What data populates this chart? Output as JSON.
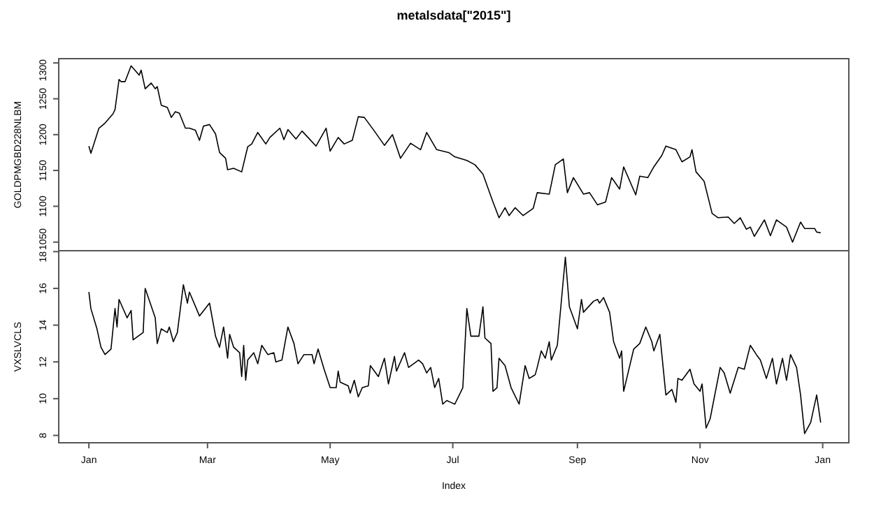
{
  "chart_data": [
    {
      "type": "line",
      "title": "metalsdata[\"2015\"]",
      "ylabel": "GOLDPMGBD228NLBM",
      "color": "#000000",
      "tick_labels": "y",
      "xlim": [
        "2014-12-17",
        "2016-01-14"
      ],
      "ylim": [
        1038,
        1306
      ],
      "yticks": [
        1050,
        1100,
        1150,
        1200,
        1250,
        1300
      ],
      "x": [
        "2015-01-01",
        "2015-01-02",
        "2015-01-06",
        "2015-01-09",
        "2015-01-13",
        "2015-01-14",
        "2015-01-16",
        "2015-01-17",
        "2015-01-19",
        "2015-01-22",
        "2015-01-26",
        "2015-01-27",
        "2015-01-29",
        "2015-02-01",
        "2015-02-03",
        "2015-02-04",
        "2015-02-06",
        "2015-02-09",
        "2015-02-11",
        "2015-02-13",
        "2015-02-15",
        "2015-02-18",
        "2015-02-20",
        "2015-02-23",
        "2015-02-25",
        "2015-02-27",
        "2015-03-02",
        "2015-03-05",
        "2015-03-07",
        "2015-03-10",
        "2015-03-11",
        "2015-03-14",
        "2015-03-18",
        "2015-03-21",
        "2015-03-23",
        "2015-03-26",
        "2015-03-30",
        "2015-04-01",
        "2015-04-06",
        "2015-04-08",
        "2015-04-10",
        "2015-04-14",
        "2015-04-17",
        "2015-04-20",
        "2015-04-24",
        "2015-04-29",
        "2015-05-01",
        "2015-05-05",
        "2015-05-08",
        "2015-05-12",
        "2015-05-15",
        "2015-05-18",
        "2015-05-23",
        "2015-05-28",
        "2015-06-01",
        "2015-06-05",
        "2015-06-10",
        "2015-06-15",
        "2015-06-18",
        "2015-06-23",
        "2015-06-29",
        "2015-07-02",
        "2015-07-08",
        "2015-07-12",
        "2015-07-16",
        "2015-07-21",
        "2015-07-24",
        "2015-07-27",
        "2015-07-29",
        "2015-08-01",
        "2015-08-05",
        "2015-08-10",
        "2015-08-12",
        "2015-08-18",
        "2015-08-21",
        "2015-08-25",
        "2015-08-27",
        "2015-08-30",
        "2015-09-04",
        "2015-09-07",
        "2015-09-11",
        "2015-09-15",
        "2015-09-18",
        "2015-09-22",
        "2015-09-24",
        "2015-09-30",
        "2015-10-02",
        "2015-10-06",
        "2015-10-09",
        "2015-10-13",
        "2015-10-15",
        "2015-10-20",
        "2015-10-23",
        "2015-10-27",
        "2015-10-28",
        "2015-10-30",
        "2015-11-03",
        "2015-11-07",
        "2015-11-10",
        "2015-11-15",
        "2015-11-18",
        "2015-11-21",
        "2015-11-24",
        "2015-11-26",
        "2015-11-28",
        "2015-12-03",
        "2015-12-06",
        "2015-12-09",
        "2015-12-14",
        "2015-12-17",
        "2015-12-21",
        "2015-12-23",
        "2015-12-28",
        "2015-12-29",
        "2015-12-31"
      ],
      "values": [
        1184,
        1174,
        1209,
        1216,
        1229,
        1235,
        1277,
        1274,
        1274,
        1296,
        1283,
        1290,
        1264,
        1272,
        1264,
        1267,
        1241,
        1238,
        1224,
        1232,
        1230,
        1209,
        1209,
        1206,
        1192,
        1212,
        1214,
        1201,
        1175,
        1167,
        1151,
        1153,
        1148,
        1183,
        1187,
        1203,
        1187,
        1196,
        1209,
        1193,
        1207,
        1194,
        1205,
        1196,
        1184,
        1209,
        1177,
        1196,
        1187,
        1192,
        1225,
        1224,
        1205,
        1185,
        1200,
        1167,
        1188,
        1179,
        1203,
        1179,
        1175,
        1169,
        1164,
        1158,
        1145,
        1106,
        1084,
        1098,
        1087,
        1098,
        1087,
        1097,
        1119,
        1117,
        1158,
        1166,
        1119,
        1140,
        1117,
        1119,
        1102,
        1106,
        1140,
        1124,
        1155,
        1116,
        1142,
        1140,
        1155,
        1171,
        1184,
        1179,
        1162,
        1169,
        1179,
        1148,
        1135,
        1090,
        1084,
        1085,
        1076,
        1084,
        1068,
        1071,
        1058,
        1081,
        1059,
        1081,
        1071,
        1050,
        1078,
        1069,
        1069,
        1064,
        1063
      ]
    },
    {
      "type": "line",
      "xlabel": "Index",
      "ylabel": "VXSLVCLS",
      "color": "#000000",
      "xlim": [
        "2014-12-17",
        "2016-01-14"
      ],
      "ylim": [
        7.6,
        18.05
      ],
      "yticks": [
        8,
        10,
        12,
        14,
        16,
        18
      ],
      "xticks": [
        {
          "value": "2015-01-01",
          "label": "Jan"
        },
        {
          "value": "2015-03-01",
          "label": "Mar"
        },
        {
          "value": "2015-05-01",
          "label": "May"
        },
        {
          "value": "2015-07-01",
          "label": "Jul"
        },
        {
          "value": "2015-09-01",
          "label": "Sep"
        },
        {
          "value": "2015-11-01",
          "label": "Nov"
        },
        {
          "value": "2016-01-01",
          "label": "Jan"
        }
      ],
      "x": [
        "2015-01-01",
        "2015-01-02",
        "2015-01-05",
        "2015-01-07",
        "2015-01-09",
        "2015-01-12",
        "2015-01-14",
        "2015-01-15",
        "2015-01-16",
        "2015-01-20",
        "2015-01-22",
        "2015-01-23",
        "2015-01-28",
        "2015-01-29",
        "2015-02-03",
        "2015-02-04",
        "2015-02-06",
        "2015-02-09",
        "2015-02-10",
        "2015-02-12",
        "2015-02-14",
        "2015-02-17",
        "2015-02-19",
        "2015-02-20",
        "2015-02-25",
        "2015-03-02",
        "2015-03-05",
        "2015-03-07",
        "2015-03-09",
        "2015-03-11",
        "2015-03-12",
        "2015-03-14",
        "2015-03-17",
        "2015-03-18",
        "2015-03-19",
        "2015-03-20",
        "2015-03-21",
        "2015-03-24",
        "2015-03-26",
        "2015-03-28",
        "2015-03-31",
        "2015-04-03",
        "2015-04-04",
        "2015-04-07",
        "2015-04-10",
        "2015-04-13",
        "2015-04-15",
        "2015-04-18",
        "2015-04-22",
        "2015-04-23",
        "2015-04-25",
        "2015-04-28",
        "2015-05-01",
        "2015-05-04",
        "2015-05-05",
        "2015-05-06",
        "2015-05-10",
        "2015-05-11",
        "2015-05-13",
        "2015-05-15",
        "2015-05-17",
        "2015-05-20",
        "2015-05-21",
        "2015-05-25",
        "2015-05-28",
        "2015-05-30",
        "2015-06-02",
        "2015-06-03",
        "2015-06-07",
        "2015-06-09",
        "2015-06-14",
        "2015-06-16",
        "2015-06-18",
        "2015-06-20",
        "2015-06-22",
        "2015-06-24",
        "2015-06-26",
        "2015-06-28",
        "2015-06-30",
        "2015-07-02",
        "2015-07-06",
        "2015-07-08",
        "2015-07-10",
        "2015-07-14",
        "2015-07-16",
        "2015-07-17",
        "2015-07-20",
        "2015-07-21",
        "2015-07-23",
        "2015-07-24",
        "2015-07-27",
        "2015-07-30",
        "2015-08-03",
        "2015-08-06",
        "2015-08-08",
        "2015-08-11",
        "2015-08-12",
        "2015-08-14",
        "2015-08-16",
        "2015-08-18",
        "2015-08-19",
        "2015-08-22",
        "2015-08-26",
        "2015-08-28",
        "2015-09-01",
        "2015-09-03",
        "2015-09-04",
        "2015-09-09",
        "2015-09-11",
        "2015-09-12",
        "2015-09-14",
        "2015-09-17",
        "2015-09-19",
        "2015-09-22",
        "2015-09-23",
        "2015-09-24",
        "2015-09-29",
        "2015-10-02",
        "2015-10-05",
        "2015-10-08",
        "2015-10-09",
        "2015-10-12",
        "2015-10-15",
        "2015-10-18",
        "2015-10-20",
        "2015-10-21",
        "2015-10-23",
        "2015-10-27",
        "2015-10-29",
        "2015-11-01",
        "2015-11-02",
        "2015-11-04",
        "2015-11-06",
        "2015-11-11",
        "2015-11-13",
        "2015-11-16",
        "2015-11-20",
        "2015-11-23",
        "2015-11-26",
        "2015-11-29",
        "2015-12-01",
        "2015-12-04",
        "2015-12-07",
        "2015-12-09",
        "2015-12-12",
        "2015-12-14",
        "2015-12-16",
        "2015-12-19",
        "2015-12-21",
        "2015-12-23",
        "2015-12-26",
        "2015-12-29",
        "2015-12-31"
      ],
      "values": [
        15.8,
        14.9,
        13.8,
        12.8,
        12.4,
        12.7,
        14.9,
        13.9,
        15.4,
        14.4,
        14.8,
        13.2,
        13.6,
        16.0,
        14.4,
        13.0,
        13.8,
        13.6,
        13.9,
        13.1,
        13.6,
        16.2,
        15.2,
        15.8,
        14.5,
        15.2,
        13.4,
        12.8,
        13.9,
        12.2,
        13.5,
        12.8,
        12.5,
        11.2,
        12.9,
        11.0,
        12.1,
        12.5,
        11.9,
        12.9,
        12.4,
        12.5,
        12.0,
        12.1,
        13.9,
        13.0,
        11.9,
        12.4,
        12.4,
        11.9,
        12.7,
        11.6,
        10.6,
        10.6,
        11.5,
        10.9,
        10.7,
        10.3,
        11.0,
        10.1,
        10.6,
        10.7,
        11.8,
        11.2,
        12.2,
        10.8,
        12.3,
        11.5,
        12.5,
        11.7,
        12.1,
        11.9,
        11.4,
        11.7,
        10.6,
        11.1,
        9.7,
        9.9,
        9.8,
        9.7,
        10.6,
        14.9,
        13.4,
        13.4,
        15.0,
        13.3,
        13.0,
        10.4,
        10.6,
        12.2,
        11.8,
        10.6,
        9.7,
        11.8,
        11.1,
        11.3,
        11.7,
        12.6,
        12.2,
        13.1,
        12.1,
        12.9,
        17.7,
        15.0,
        13.8,
        15.4,
        14.7,
        15.3,
        15.4,
        15.2,
        15.5,
        14.7,
        13.1,
        12.2,
        12.6,
        10.4,
        12.7,
        13.0,
        13.9,
        13.1,
        12.6,
        13.5,
        10.2,
        10.5,
        9.8,
        11.1,
        11.0,
        11.6,
        10.8,
        10.4,
        10.8,
        8.4,
        8.9,
        11.7,
        11.4,
        10.3,
        11.7,
        11.6,
        12.9,
        12.4,
        12.1,
        11.1,
        12.2,
        10.8,
        12.2,
        11.0,
        12.4,
        11.7,
        10.2,
        8.1,
        8.7,
        10.2,
        8.7
      ]
    }
  ]
}
